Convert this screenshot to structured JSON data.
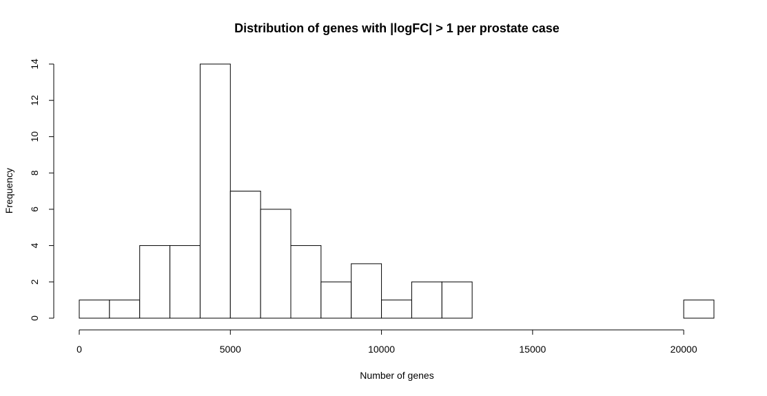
{
  "chart_data": {
    "type": "bar",
    "title": "Distribution of genes with |logFC| > 1 per prostate case",
    "xlabel": "Number of genes",
    "ylabel": "Frequency",
    "bin_width": 1000,
    "bin_starts": [
      0,
      1000,
      2000,
      3000,
      4000,
      5000,
      6000,
      7000,
      8000,
      9000,
      10000,
      11000,
      12000,
      13000,
      14000,
      15000,
      16000,
      17000,
      18000,
      19000,
      20000
    ],
    "values": [
      1,
      1,
      4,
      4,
      14,
      7,
      6,
      4,
      2,
      3,
      1,
      2,
      2,
      0,
      0,
      0,
      0,
      0,
      0,
      0,
      1
    ],
    "xlim": [
      0,
      21000
    ],
    "ylim": [
      0,
      14
    ],
    "x_ticks": [
      0,
      5000,
      10000,
      15000,
      20000
    ],
    "x_tick_labels": [
      "0",
      "5000",
      "10000",
      "15000",
      "20000"
    ],
    "y_ticks": [
      0,
      2,
      4,
      6,
      8,
      10,
      12,
      14
    ],
    "y_tick_labels": [
      "0",
      "2",
      "4",
      "6",
      "8",
      "10",
      "12",
      "14"
    ],
    "grid": false,
    "colors": {
      "bar_fill": "#ffffff",
      "bar_stroke": "#000000",
      "background": "#ffffff"
    }
  }
}
